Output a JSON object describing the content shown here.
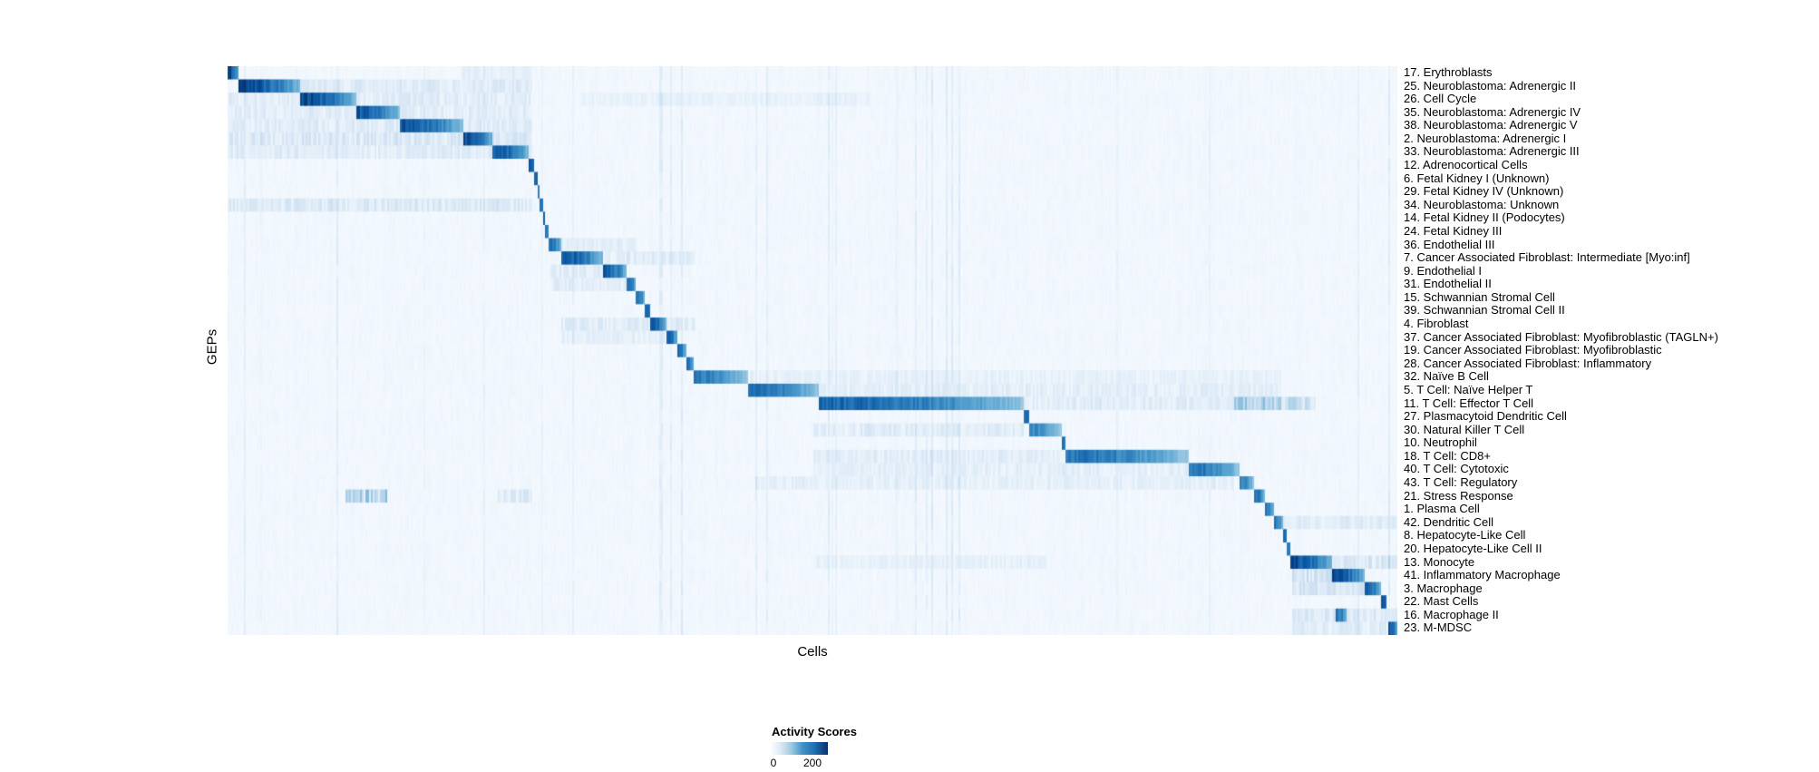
{
  "figure": {
    "x_axis_label": "Cells",
    "y_axis_label": "GEPs"
  },
  "legend": {
    "title": "Activity Scores",
    "tick_min": "0",
    "tick_max": "200"
  },
  "colors": {
    "background": "#ffffff",
    "colormap": "Blues",
    "colormap_low": "#f7fbff",
    "colormap_high": "#08306b"
  },
  "chart_data": {
    "type": "heatmap",
    "title": "",
    "xlabel": "Cells",
    "ylabel": "GEPs",
    "grid": false,
    "legend_position": "bottom",
    "colormap": "Blues",
    "colorbar": {
      "title": "Activity Scores",
      "min": 0,
      "max": 200
    },
    "description": "GEP activity scores per single cell; cells ordered by assigned program, producing a diagonal block structure. block = [start,end] fraction of cell axis with high activity; peak = relative intensity (1 = darkest, ~max of colorbar); diffuse = [start,end,intensity] regions of weak cross-activity.",
    "rows": [
      {
        "label": "17. Erythroblasts",
        "block": [
          0.0,
          0.009
        ],
        "peak": 1.0,
        "diffuse": [
          [
            0.2,
            0.26,
            0.06
          ]
        ]
      },
      {
        "label": "25. Neuroblastoma: Adrenergic II",
        "block": [
          0.009,
          0.062
        ],
        "peak": 1.0,
        "diffuse": [
          [
            0.062,
            0.26,
            0.09
          ]
        ]
      },
      {
        "label": "26. Cell Cycle",
        "block": [
          0.062,
          0.11
        ],
        "peak": 1.0,
        "diffuse": [
          [
            0.0,
            0.26,
            0.08
          ],
          [
            0.3,
            0.55,
            0.04
          ]
        ]
      },
      {
        "label": "35. Neuroblastoma: Adrenergic IV",
        "block": [
          0.11,
          0.148
        ],
        "peak": 0.95,
        "diffuse": [
          [
            0.0,
            0.26,
            0.08
          ]
        ]
      },
      {
        "label": "38. Neuroblastoma: Adrenergic V",
        "block": [
          0.148,
          0.202
        ],
        "peak": 0.95,
        "diffuse": [
          [
            0.0,
            0.26,
            0.08
          ]
        ]
      },
      {
        "label": "2. Neuroblastoma: Adrenergic I",
        "block": [
          0.202,
          0.227
        ],
        "peak": 1.0,
        "diffuse": [
          [
            0.0,
            0.26,
            0.11
          ]
        ]
      },
      {
        "label": "33. Neuroblastoma: Adrenergic III",
        "block": [
          0.227,
          0.258
        ],
        "peak": 0.95,
        "diffuse": [
          [
            0.0,
            0.26,
            0.08
          ]
        ]
      },
      {
        "label": "12. Adrenocortical Cells",
        "block": [
          0.258,
          0.262
        ],
        "peak": 0.9,
        "diffuse": []
      },
      {
        "label": "6. Fetal Kidney I (Unknown)",
        "block": [
          0.262,
          0.265
        ],
        "peak": 0.85,
        "diffuse": []
      },
      {
        "label": "29. Fetal Kidney IV (Unknown)",
        "block": [
          0.265,
          0.267
        ],
        "peak": 0.8,
        "diffuse": []
      },
      {
        "label": "34. Neuroblastoma: Unknown",
        "block": [
          0.267,
          0.269
        ],
        "peak": 0.8,
        "diffuse": [
          [
            0.0,
            0.26,
            0.1
          ]
        ]
      },
      {
        "label": "14. Fetal Kidney II (Podocytes)",
        "block": [
          0.269,
          0.272
        ],
        "peak": 0.85,
        "diffuse": []
      },
      {
        "label": "24. Fetal Kidney III",
        "block": [
          0.272,
          0.275
        ],
        "peak": 0.8,
        "diffuse": []
      },
      {
        "label": "36. Endothelial III",
        "block": [
          0.275,
          0.285
        ],
        "peak": 0.9,
        "diffuse": [
          [
            0.285,
            0.35,
            0.06
          ]
        ]
      },
      {
        "label": "7. Cancer Associated Fibroblast: Intermediate [Myo:inf]",
        "block": [
          0.285,
          0.321
        ],
        "peak": 0.95,
        "diffuse": [
          [
            0.321,
            0.4,
            0.08
          ]
        ]
      },
      {
        "label": "9. Endothelial I",
        "block": [
          0.321,
          0.341
        ],
        "peak": 0.95,
        "diffuse": [
          [
            0.275,
            0.321,
            0.08
          ]
        ]
      },
      {
        "label": "31. Endothelial II",
        "block": [
          0.341,
          0.349
        ],
        "peak": 0.9,
        "diffuse": [
          [
            0.275,
            0.341,
            0.07
          ]
        ]
      },
      {
        "label": "15. Schwannian Stromal Cell",
        "block": [
          0.349,
          0.357
        ],
        "peak": 0.9,
        "diffuse": []
      },
      {
        "label": "39. Schwannian Stromal Cell II",
        "block": [
          0.357,
          0.362
        ],
        "peak": 0.85,
        "diffuse": []
      },
      {
        "label": "4. Fibroblast",
        "block": [
          0.362,
          0.375
        ],
        "peak": 0.95,
        "diffuse": [
          [
            0.285,
            0.4,
            0.08
          ]
        ]
      },
      {
        "label": "37. Cancer Associated Fibroblast: Myofibroblastic (TAGLN+)",
        "block": [
          0.375,
          0.385
        ],
        "peak": 0.9,
        "diffuse": [
          [
            0.285,
            0.375,
            0.06
          ]
        ]
      },
      {
        "label": "19. Cancer Associated Fibroblast: Myofibroblastic",
        "block": [
          0.385,
          0.392
        ],
        "peak": 0.9,
        "diffuse": []
      },
      {
        "label": "28. Cancer Associated Fibroblast: Inflammatory",
        "block": [
          0.392,
          0.398
        ],
        "peak": 0.85,
        "diffuse": []
      },
      {
        "label": "32. Naïve B Cell",
        "block": [
          0.398,
          0.445
        ],
        "peak": 0.8,
        "diffuse": [
          [
            0.445,
            0.9,
            0.05
          ]
        ]
      },
      {
        "label": "5. T Cell: Naïve Helper T",
        "block": [
          0.445,
          0.505
        ],
        "peak": 0.85,
        "diffuse": [
          [
            0.505,
            0.9,
            0.07
          ]
        ]
      },
      {
        "label": "11. T Cell: Effector T Cell",
        "block": [
          0.505,
          0.68
        ],
        "peak": 0.9,
        "diffuse": [
          [
            0.68,
            0.9,
            0.08
          ],
          [
            0.86,
            0.93,
            0.18
          ]
        ]
      },
      {
        "label": "27. Plasmacytoid Dendritic Cell",
        "block": [
          0.68,
          0.686
        ],
        "peak": 0.85,
        "diffuse": []
      },
      {
        "label": "30. Natural Killer T Cell",
        "block": [
          0.686,
          0.713
        ],
        "peak": 0.75,
        "diffuse": [
          [
            0.5,
            0.68,
            0.08
          ]
        ]
      },
      {
        "label": "10. Neutrophil",
        "block": [
          0.713,
          0.717
        ],
        "peak": 0.8,
        "diffuse": []
      },
      {
        "label": "18. T Cell: CD8+",
        "block": [
          0.717,
          0.822
        ],
        "peak": 0.85,
        "diffuse": [
          [
            0.5,
            0.717,
            0.07
          ]
        ]
      },
      {
        "label": "40. T Cell: Cytotoxic",
        "block": [
          0.822,
          0.865
        ],
        "peak": 0.85,
        "diffuse": [
          [
            0.5,
            0.822,
            0.06
          ]
        ]
      },
      {
        "label": "43. T Cell: Regulatory",
        "block": [
          0.865,
          0.877
        ],
        "peak": 0.8,
        "diffuse": [
          [
            0.45,
            0.86,
            0.06
          ]
        ]
      },
      {
        "label": "21. Stress Response",
        "block": [
          0.877,
          0.887
        ],
        "peak": 0.85,
        "diffuse": [
          [
            0.1,
            0.135,
            0.25
          ],
          [
            0.23,
            0.26,
            0.1
          ]
        ]
      },
      {
        "label": "1. Plasma Cell",
        "block": [
          0.887,
          0.895
        ],
        "peak": 0.85,
        "diffuse": []
      },
      {
        "label": "42. Dendritic Cell",
        "block": [
          0.895,
          0.902
        ],
        "peak": 0.85,
        "diffuse": [
          [
            0.902,
            1.0,
            0.08
          ]
        ]
      },
      {
        "label": "8. Hepatocyte-Like Cell",
        "block": [
          0.902,
          0.906
        ],
        "peak": 0.85,
        "diffuse": []
      },
      {
        "label": "20. Hepatocyte-Like Cell II",
        "block": [
          0.906,
          0.909
        ],
        "peak": 0.8,
        "diffuse": []
      },
      {
        "label": "13. Monocyte",
        "block": [
          0.909,
          0.944
        ],
        "peak": 1.0,
        "diffuse": [
          [
            0.944,
            1.0,
            0.12
          ],
          [
            0.5,
            0.7,
            0.05
          ]
        ]
      },
      {
        "label": "41. Inflammatory Macrophage",
        "block": [
          0.944,
          0.972
        ],
        "peak": 1.0,
        "diffuse": [
          [
            0.909,
            0.944,
            0.15
          ]
        ]
      },
      {
        "label": "3. Macrophage",
        "block": [
          0.972,
          0.986
        ],
        "peak": 0.95,
        "diffuse": [
          [
            0.909,
            0.972,
            0.12
          ]
        ]
      },
      {
        "label": "22. Mast Cells",
        "block": [
          0.986,
          0.99
        ],
        "peak": 0.9,
        "diffuse": []
      },
      {
        "label": "16. Macrophage II",
        "block": [
          0.947,
          0.957
        ],
        "peak": 0.85,
        "diffuse": [
          [
            0.909,
            1.0,
            0.1
          ]
        ]
      },
      {
        "label": "23. M-MDSC",
        "block": [
          0.993,
          1.0
        ],
        "peak": 1.0,
        "diffuse": [
          [
            0.909,
            0.99,
            0.08
          ]
        ]
      }
    ]
  }
}
